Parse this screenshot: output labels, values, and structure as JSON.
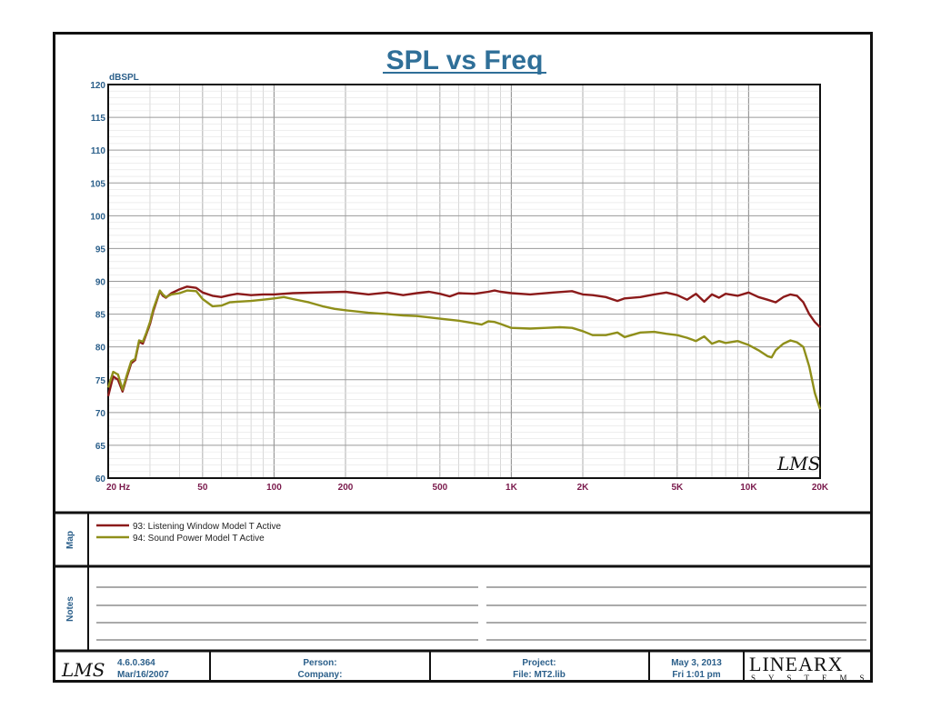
{
  "chart_data": {
    "type": "line",
    "title": "SPL vs Freq",
    "ylabel": "dBSPL",
    "xscale": "log",
    "xlim": [
      20,
      20000
    ],
    "ylim": [
      60,
      120
    ],
    "grid": true,
    "y_ticks": [
      "60",
      "65",
      "70",
      "75",
      "80",
      "85",
      "90",
      "95",
      "100",
      "105",
      "110",
      "115",
      "120"
    ],
    "x_ticks": [
      {
        "value": 20,
        "label": "20  Hz"
      },
      {
        "value": 50,
        "label": "50"
      },
      {
        "value": 100,
        "label": "100"
      },
      {
        "value": 200,
        "label": "200"
      },
      {
        "value": 500,
        "label": "500"
      },
      {
        "value": 1000,
        "label": "1K"
      },
      {
        "value": 2000,
        "label": "2K"
      },
      {
        "value": 5000,
        "label": "5K"
      },
      {
        "value": 10000,
        "label": "10K"
      },
      {
        "value": 20000,
        "label": "20K"
      }
    ],
    "series": [
      {
        "name": "93: Listening Window Model T Active",
        "color": "#8b1a1a",
        "points": [
          [
            20,
            72.5
          ],
          [
            21,
            75.5
          ],
          [
            22,
            75
          ],
          [
            23,
            73.2
          ],
          [
            24,
            75.5
          ],
          [
            25,
            77.5
          ],
          [
            26,
            78
          ],
          [
            27,
            80.8
          ],
          [
            28,
            80.5
          ],
          [
            29,
            82
          ],
          [
            30,
            83.5
          ],
          [
            31,
            85.5
          ],
          [
            32,
            87
          ],
          [
            33,
            88.5
          ],
          [
            34,
            87.8
          ],
          [
            35,
            87.5
          ],
          [
            37,
            88.2
          ],
          [
            40,
            88.8
          ],
          [
            43,
            89.2
          ],
          [
            47,
            89
          ],
          [
            50,
            88.3
          ],
          [
            55,
            87.8
          ],
          [
            60,
            87.6
          ],
          [
            65,
            87.9
          ],
          [
            70,
            88.1
          ],
          [
            80,
            87.9
          ],
          [
            90,
            88
          ],
          [
            100,
            88
          ],
          [
            120,
            88.2
          ],
          [
            150,
            88.3
          ],
          [
            200,
            88.4
          ],
          [
            250,
            88
          ],
          [
            300,
            88.3
          ],
          [
            350,
            87.9
          ],
          [
            400,
            88.2
          ],
          [
            450,
            88.4
          ],
          [
            500,
            88.1
          ],
          [
            550,
            87.7
          ],
          [
            600,
            88.2
          ],
          [
            700,
            88.1
          ],
          [
            800,
            88.4
          ],
          [
            850,
            88.6
          ],
          [
            900,
            88.4
          ],
          [
            1000,
            88.2
          ],
          [
            1200,
            88
          ],
          [
            1500,
            88.3
          ],
          [
            1800,
            88.5
          ],
          [
            2000,
            88
          ],
          [
            2200,
            87.9
          ],
          [
            2500,
            87.6
          ],
          [
            2800,
            87
          ],
          [
            3000,
            87.4
          ],
          [
            3500,
            87.6
          ],
          [
            4000,
            88
          ],
          [
            4500,
            88.3
          ],
          [
            5000,
            87.9
          ],
          [
            5500,
            87.2
          ],
          [
            6000,
            88.1
          ],
          [
            6500,
            86.9
          ],
          [
            7000,
            88
          ],
          [
            7500,
            87.5
          ],
          [
            8000,
            88.1
          ],
          [
            9000,
            87.8
          ],
          [
            10000,
            88.3
          ],
          [
            11000,
            87.6
          ],
          [
            12000,
            87.2
          ],
          [
            13000,
            86.8
          ],
          [
            14000,
            87.6
          ],
          [
            15000,
            88
          ],
          [
            16000,
            87.8
          ],
          [
            17000,
            86.8
          ],
          [
            18000,
            85
          ],
          [
            19000,
            83.8
          ],
          [
            20000,
            83
          ]
        ]
      },
      {
        "name": "94: Sound Power Model T Active",
        "color": "#8f8f1a",
        "points": [
          [
            20,
            73.8
          ],
          [
            21,
            76.2
          ],
          [
            22,
            75.8
          ],
          [
            23,
            73.5
          ],
          [
            24,
            75.8
          ],
          [
            25,
            77.8
          ],
          [
            26,
            78.2
          ],
          [
            27,
            81
          ],
          [
            28,
            80.8
          ],
          [
            29,
            82.2
          ],
          [
            30,
            83.8
          ],
          [
            31,
            85.8
          ],
          [
            32,
            87.2
          ],
          [
            33,
            88.6
          ],
          [
            34,
            88
          ],
          [
            35,
            87.6
          ],
          [
            37,
            88
          ],
          [
            40,
            88.2
          ],
          [
            43,
            88.6
          ],
          [
            47,
            88.5
          ],
          [
            50,
            87.3
          ],
          [
            55,
            86.2
          ],
          [
            60,
            86.3
          ],
          [
            65,
            86.8
          ],
          [
            70,
            86.9
          ],
          [
            80,
            87
          ],
          [
            90,
            87.2
          ],
          [
            100,
            87.4
          ],
          [
            110,
            87.6
          ],
          [
            120,
            87.3
          ],
          [
            140,
            86.8
          ],
          [
            160,
            86.2
          ],
          [
            180,
            85.8
          ],
          [
            200,
            85.6
          ],
          [
            250,
            85.2
          ],
          [
            300,
            85
          ],
          [
            350,
            84.8
          ],
          [
            400,
            84.7
          ],
          [
            450,
            84.5
          ],
          [
            500,
            84.3
          ],
          [
            600,
            84
          ],
          [
            700,
            83.6
          ],
          [
            750,
            83.4
          ],
          [
            800,
            83.9
          ],
          [
            850,
            83.8
          ],
          [
            900,
            83.5
          ],
          [
            1000,
            82.9
          ],
          [
            1200,
            82.8
          ],
          [
            1400,
            82.9
          ],
          [
            1600,
            83
          ],
          [
            1800,
            82.9
          ],
          [
            2000,
            82.4
          ],
          [
            2200,
            81.8
          ],
          [
            2500,
            81.8
          ],
          [
            2800,
            82.2
          ],
          [
            3000,
            81.5
          ],
          [
            3500,
            82.2
          ],
          [
            4000,
            82.3
          ],
          [
            4500,
            82
          ],
          [
            5000,
            81.8
          ],
          [
            5500,
            81.4
          ],
          [
            6000,
            80.9
          ],
          [
            6500,
            81.6
          ],
          [
            7000,
            80.5
          ],
          [
            7500,
            80.9
          ],
          [
            8000,
            80.6
          ],
          [
            9000,
            80.9
          ],
          [
            10000,
            80.3
          ],
          [
            11000,
            79.5
          ],
          [
            12000,
            78.6
          ],
          [
            12500,
            78.4
          ],
          [
            13000,
            79.5
          ],
          [
            14000,
            80.5
          ],
          [
            15000,
            81
          ],
          [
            16000,
            80.7
          ],
          [
            17000,
            80
          ],
          [
            18000,
            77
          ],
          [
            19000,
            73
          ],
          [
            20000,
            70.5
          ]
        ]
      }
    ]
  },
  "map_label": "Map",
  "notes_label": "Notes",
  "footer": {
    "logo_text": "LMS",
    "version": "4.6.0.364",
    "build_date": "Mar/16/2007",
    "person_label": "Person:",
    "company_label": "Company:",
    "project_label": "Project:",
    "file_label": "File: MT2.lib",
    "date": "May  3, 2013",
    "time": "Fri  1:01 pm",
    "brand": "LINEARX",
    "brand_sub": "SYSTEMS"
  },
  "watermark": "LMS"
}
